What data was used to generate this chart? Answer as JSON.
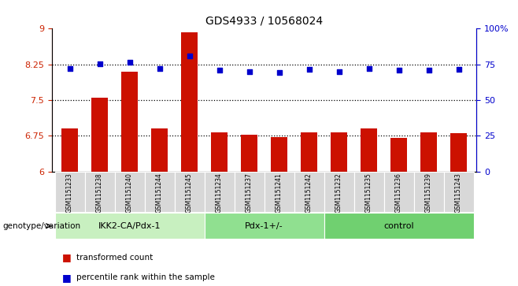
{
  "title": "GDS4933 / 10568024",
  "samples": [
    "GSM1151233",
    "GSM1151238",
    "GSM1151240",
    "GSM1151244",
    "GSM1151245",
    "GSM1151234",
    "GSM1151237",
    "GSM1151241",
    "GSM1151242",
    "GSM1151232",
    "GSM1151235",
    "GSM1151236",
    "GSM1151239",
    "GSM1151243"
  ],
  "bar_values": [
    6.9,
    7.55,
    8.1,
    6.9,
    8.92,
    6.83,
    6.78,
    6.72,
    6.83,
    6.83,
    6.9,
    6.7,
    6.83,
    6.8
  ],
  "dot_values": [
    8.17,
    8.26,
    8.3,
    8.17,
    8.42,
    8.13,
    8.1,
    8.08,
    8.15,
    8.09,
    8.17,
    8.13,
    8.13,
    8.14
  ],
  "ylim_left": [
    6.0,
    9.0
  ],
  "ylim_right": [
    0,
    100
  ],
  "yticks_left": [
    6.0,
    6.75,
    7.5,
    8.25,
    9.0
  ],
  "yticks_right": [
    0,
    25,
    50,
    75,
    100
  ],
  "ytick_labels_left": [
    "6",
    "6.75",
    "7.5",
    "8.25",
    "9"
  ],
  "ytick_labels_right": [
    "0",
    "25",
    "50",
    "75",
    "100%"
  ],
  "hlines": [
    6.75,
    7.5,
    8.25
  ],
  "groups": [
    {
      "label": "IKK2-CA/Pdx-1",
      "start": 0,
      "end": 5,
      "color": "#c8f0c0"
    },
    {
      "label": "Pdx-1+/-",
      "start": 5,
      "end": 9,
      "color": "#90e090"
    },
    {
      "label": "control",
      "start": 9,
      "end": 14,
      "color": "#70d070"
    }
  ],
  "group_row_label": "genotype/variation",
  "bar_color": "#cc1100",
  "dot_color": "#0000cc",
  "bar_baseline": 6.0,
  "legend_bar_label": "transformed count",
  "legend_dot_label": "percentile rank within the sample",
  "plot_bg": "#ffffff",
  "sample_box_color": "#d8d8d8",
  "left_axis_color": "#cc2200",
  "right_axis_color": "#0000cc"
}
